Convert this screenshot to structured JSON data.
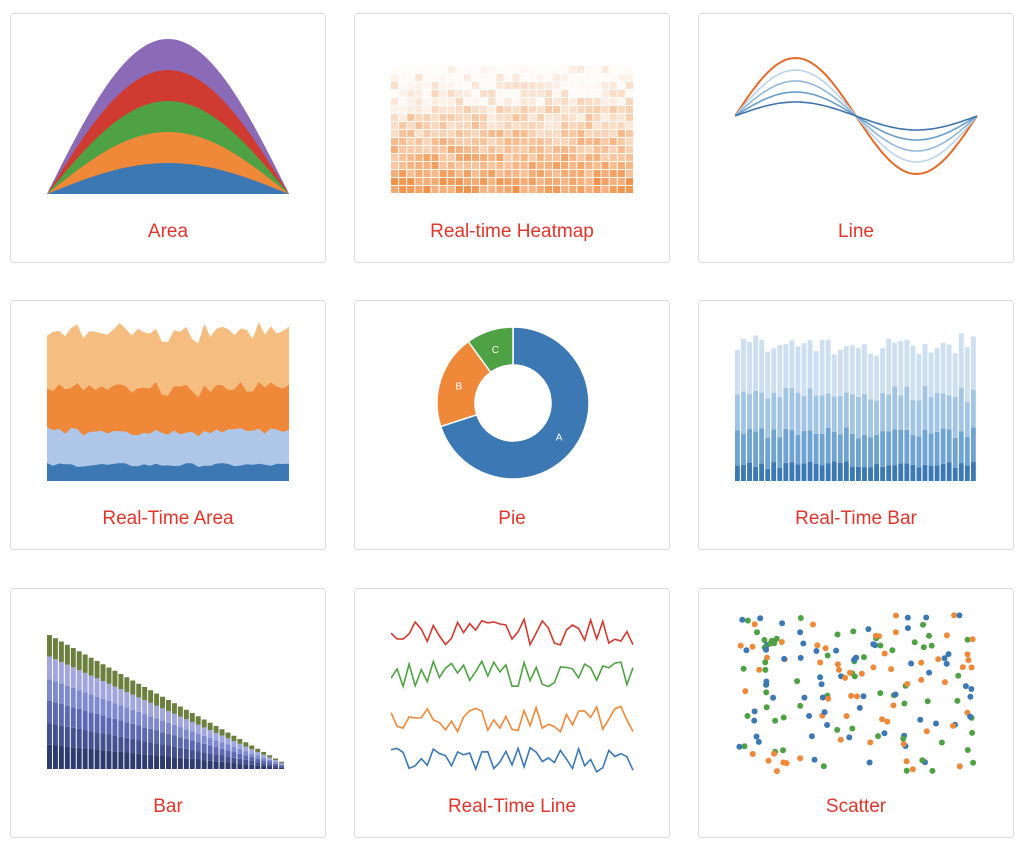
{
  "colors": {
    "link": "#e0362c",
    "border": "#dcdcdc",
    "blue": "#3b78b4",
    "orange": "#f0883a",
    "green": "#4ea243",
    "red": "#cf3b30",
    "purple": "#8b6ab8"
  },
  "cards": [
    {
      "label": "Area",
      "icon": "stacked-area-chart-icon"
    },
    {
      "label": "Real-time Heatmap",
      "icon": "heatmap-chart-icon"
    },
    {
      "label": "Line",
      "icon": "line-chart-icon"
    },
    {
      "label": "Real-Time Area",
      "icon": "realtime-area-chart-icon"
    },
    {
      "label": "Pie",
      "icon": "donut-chart-icon"
    },
    {
      "label": "Real-Time Bar",
      "icon": "realtime-bar-chart-icon"
    },
    {
      "label": "Bar",
      "icon": "stacked-bar-chart-icon"
    },
    {
      "label": "Real-Time Line",
      "icon": "realtime-line-chart-icon"
    },
    {
      "label": "Scatter",
      "icon": "scatter-chart-icon"
    }
  ],
  "pie": {
    "slices": [
      {
        "label": "A",
        "value": 70
      },
      {
        "label": "B",
        "value": 20
      },
      {
        "label": "C",
        "value": 10
      }
    ]
  }
}
